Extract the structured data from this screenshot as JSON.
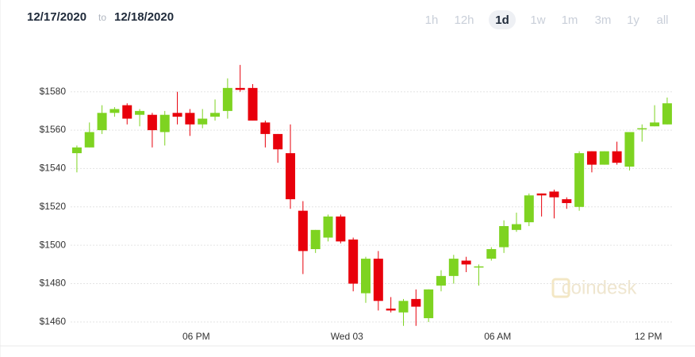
{
  "header": {
    "from": "12/17/2020",
    "separator": "to",
    "to": "12/18/2020",
    "ranges": [
      "1h",
      "12h",
      "1d",
      "1w",
      "1m",
      "3m",
      "1y",
      "all"
    ],
    "selected_range": 2
  },
  "watermark": "coindesk",
  "chart_data": {
    "type": "candlestick",
    "categories": [
      null,
      null,
      null,
      null,
      null,
      null,
      null,
      null,
      null,
      null,
      "06 PM",
      null,
      null,
      null,
      null,
      null,
      null,
      null,
      null,
      null,
      null,
      null,
      "Wed 03",
      null,
      null,
      null,
      null,
      null,
      null,
      null,
      null,
      null,
      null,
      null,
      "06 AM",
      null,
      null,
      null,
      null,
      null,
      null,
      null,
      null,
      null,
      null,
      null,
      "12 PM",
      null
    ],
    "open": [
      1548,
      1551,
      1560,
      1569,
      1573,
      1568,
      1568,
      1559,
      1569,
      1569,
      1563,
      1567,
      1570,
      1582,
      1582,
      1564,
      1558,
      1548,
      1518,
      1498,
      1504,
      1515,
      1503,
      1475,
      1493,
      1467,
      1465,
      1472,
      1462,
      1479,
      1484,
      1492,
      1489,
      1493,
      1499,
      1508,
      1512,
      1527,
      1528,
      1524,
      1520,
      1549,
      1542,
      1549,
      1541,
      1561,
      1562,
      1563
    ],
    "high": [
      1552,
      1564,
      1573,
      1572,
      1574,
      1571,
      1569,
      1570,
      1580,
      1571,
      1571,
      1576,
      1587,
      1594,
      1584,
      1565,
      1558,
      1563,
      1523,
      1508,
      1516,
      1516,
      1504,
      1494,
      1497,
      1473,
      1472,
      1477,
      1477,
      1487,
      1495,
      1494,
      1490,
      1499,
      1513,
      1517,
      1527,
      1527,
      1529,
      1525,
      1549,
      1549,
      1549,
      1554,
      1559,
      1563,
      1573,
      1577
    ],
    "low": [
      1538,
      1551,
      1558,
      1567,
      1563,
      1562,
      1551,
      1552,
      1563,
      1557,
      1561,
      1565,
      1566,
      1580,
      1565,
      1551,
      1543,
      1519,
      1485,
      1496,
      1502,
      1501,
      1476,
      1470,
      1466,
      1465,
      1458,
      1458,
      1460,
      1476,
      1480,
      1486,
      1479,
      1492,
      1496,
      1507,
      1510,
      1515,
      1514,
      1519,
      1518,
      1538,
      1542,
      1542,
      1539,
      1554,
      1562,
      1563
    ],
    "close": [
      1551,
      1559,
      1569,
      1571,
      1566,
      1570,
      1560,
      1568,
      1567,
      1563,
      1566,
      1569,
      1582,
      1581,
      1565,
      1558,
      1550,
      1524,
      1497,
      1508,
      1515,
      1502,
      1480,
      1493,
      1471,
      1466,
      1471,
      1468,
      1477,
      1484,
      1493,
      1490,
      1489,
      1498,
      1510,
      1511,
      1526,
      1526,
      1525,
      1522,
      1548,
      1542,
      1549,
      1543,
      1559,
      1561,
      1564,
      1574
    ],
    "up_color": "#7ed321",
    "down_color": "#e8000b",
    "ylim": [
      1455,
      1596
    ],
    "yticks": [
      {
        "value": 1460,
        "label": "$1460"
      },
      {
        "value": 1480,
        "label": "$1480"
      },
      {
        "value": 1500,
        "label": "$1500"
      },
      {
        "value": 1520,
        "label": "$1520"
      },
      {
        "value": 1540,
        "label": "$1540"
      },
      {
        "value": 1560,
        "label": "$1560"
      },
      {
        "value": 1580,
        "label": "$1580"
      }
    ],
    "grid": true
  }
}
